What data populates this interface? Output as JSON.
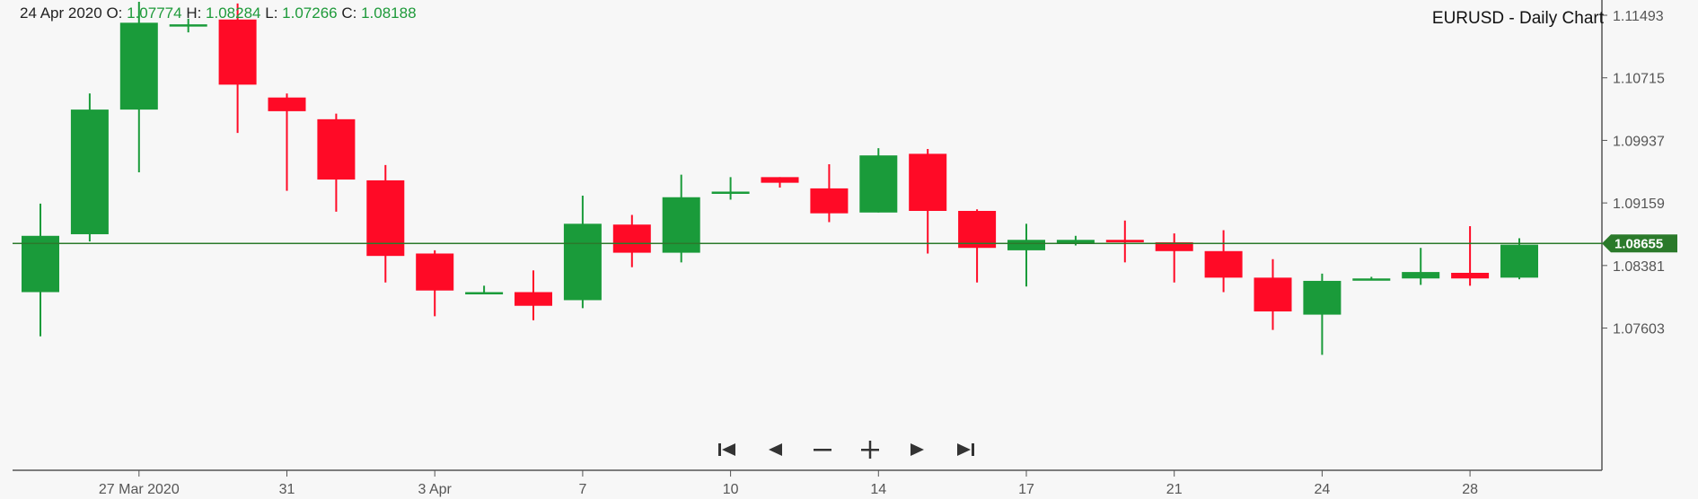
{
  "ohlc": {
    "date": "24 Apr 2020",
    "o_label": "O:",
    "o_value": "1.07774",
    "h_label": "H:",
    "h_value": "1.08284",
    "l_label": "L:",
    "l_value": "1.07266",
    "c_label": "C:",
    "c_value": "1.08188"
  },
  "title": "EURUSD - Daily Chart",
  "colors": {
    "up": "#1a9b3a",
    "down": "#ff0a26",
    "line": "#2b7a2b",
    "axis": "#555555",
    "background": "#f7f7f7"
  },
  "navigation": [
    "first-icon",
    "prev-icon",
    "zoom-out-icon",
    "zoom-in-icon",
    "next-icon",
    "last-icon"
  ],
  "chart_data": {
    "type": "candlestick",
    "title": "EURUSD - Daily Chart",
    "ylim": [
      1.0685,
      1.1186
    ],
    "y_ticks": [
      "1.11493",
      "1.10715",
      "1.09937",
      "1.09159",
      "1.08381",
      "1.07603"
    ],
    "current_price": 1.08655,
    "current_price_label": "1.08655",
    "x_tick_labels": [
      {
        "index": 2,
        "label": "27 Mar 2020"
      },
      {
        "index": 5,
        "label": "31"
      },
      {
        "index": 8,
        "label": "3 Apr"
      },
      {
        "index": 11,
        "label": "7"
      },
      {
        "index": 14,
        "label": "10"
      },
      {
        "index": 17,
        "label": "14"
      },
      {
        "index": 20,
        "label": "17"
      },
      {
        "index": 23,
        "label": "21"
      },
      {
        "index": 26,
        "label": "24"
      },
      {
        "index": 29,
        "label": "28"
      }
    ],
    "candles": [
      {
        "o": 1.0805,
        "h": 1.0915,
        "l": 1.075,
        "c": 1.0875
      },
      {
        "o": 1.0877,
        "h": 1.1052,
        "l": 1.0868,
        "c": 1.1032
      },
      {
        "o": 1.1032,
        "h": 1.1166,
        "l": 1.0954,
        "c": 1.114
      },
      {
        "o": 1.1138,
        "h": 1.1145,
        "l": 1.1128,
        "c": 1.1138
      },
      {
        "o": 1.1144,
        "h": 1.1164,
        "l": 1.1003,
        "c": 1.1063
      },
      {
        "o": 1.1047,
        "h": 1.1052,
        "l": 1.0931,
        "c": 1.103
      },
      {
        "o": 1.102,
        "h": 1.1027,
        "l": 1.0905,
        "c": 1.0945
      },
      {
        "o": 1.0944,
        "h": 1.0963,
        "l": 1.0817,
        "c": 1.085
      },
      {
        "o": 1.0853,
        "h": 1.0857,
        "l": 1.0775,
        "c": 1.0807
      },
      {
        "o": 1.0805,
        "h": 1.0813,
        "l": 1.0805,
        "c": 1.0805
      },
      {
        "o": 1.0805,
        "h": 1.0832,
        "l": 1.077,
        "c": 1.0788
      },
      {
        "o": 1.0795,
        "h": 1.0925,
        "l": 1.0785,
        "c": 1.089
      },
      {
        "o": 1.0889,
        "h": 1.0901,
        "l": 1.0836,
        "c": 1.0854
      },
      {
        "o": 1.0854,
        "h": 1.0951,
        "l": 1.0842,
        "c": 1.0923
      },
      {
        "o": 1.093,
        "h": 1.0948,
        "l": 1.092,
        "c": 1.093
      },
      {
        "o": 1.0948,
        "h": 1.0948,
        "l": 1.0935,
        "c": 1.0941
      },
      {
        "o": 1.0934,
        "h": 1.0964,
        "l": 1.0892,
        "c": 1.0903
      },
      {
        "o": 1.0904,
        "h": 1.0984,
        "l": 1.0904,
        "c": 1.0975
      },
      {
        "o": 1.0977,
        "h": 1.0983,
        "l": 1.0853,
        "c": 1.0906
      },
      {
        "o": 1.0906,
        "h": 1.0908,
        "l": 1.0817,
        "c": 1.086
      },
      {
        "o": 1.0857,
        "h": 1.089,
        "l": 1.0812,
        "c": 1.087
      },
      {
        "o": 1.0866,
        "h": 1.0875,
        "l": 1.0863,
        "c": 1.087
      },
      {
        "o": 1.087,
        "h": 1.0894,
        "l": 1.0842,
        "c": 1.0867
      },
      {
        "o": 1.0867,
        "h": 1.0878,
        "l": 1.0817,
        "c": 1.0856
      },
      {
        "o": 1.0856,
        "h": 1.0882,
        "l": 1.0805,
        "c": 1.0823
      },
      {
        "o": 1.0823,
        "h": 1.0846,
        "l": 1.0758,
        "c": 1.0781
      },
      {
        "o": 1.0777,
        "h": 1.0828,
        "l": 1.0727,
        "c": 1.0819
      },
      {
        "o": 1.0822,
        "h": 1.0824,
        "l": 1.082,
        "c": 1.0822
      },
      {
        "o": 1.0822,
        "h": 1.086,
        "l": 1.0814,
        "c": 1.083
      },
      {
        "o": 1.0829,
        "h": 1.0887,
        "l": 1.0813,
        "c": 1.0822
      },
      {
        "o": 1.0823,
        "h": 1.0872,
        "l": 1.0821,
        "c": 1.0864
      }
    ]
  }
}
